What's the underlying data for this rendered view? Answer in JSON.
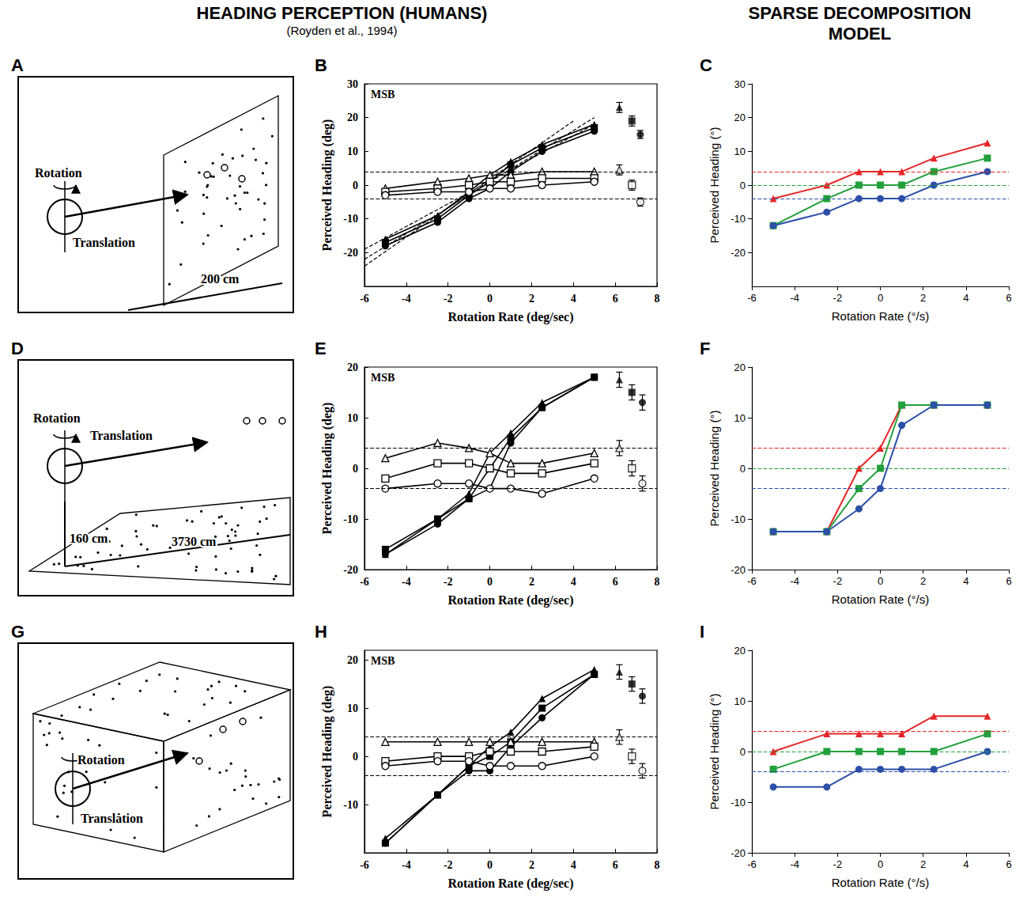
{
  "headers": {
    "humans": {
      "title": "HEADING PERCEPTION (HUMANS)",
      "subtitle": "(Royden et al., 1994)"
    },
    "model": {
      "title": "SPARSE DECOMPOSITION MODEL"
    }
  },
  "diagrams": [
    {
      "panel_label": "A",
      "labels": {
        "rotation": "Rotation",
        "translation": "Translation",
        "distance": "200 cm"
      }
    },
    {
      "panel_label": "D",
      "labels": {
        "rotation": "Rotation",
        "translation": "Translation",
        "height": "160 cm",
        "distance": "3730 cm"
      }
    },
    {
      "panel_label": "G",
      "labels": {
        "rotation": "Rotation",
        "translation": "Translation"
      }
    }
  ],
  "chart_data": [
    {
      "panel_label": "B",
      "type": "line",
      "annotation": "MSB",
      "x_label": "Rotation Rate (deg/sec)",
      "y_label": "Perceived Heading (deg)",
      "x": [
        -5,
        -2.5,
        -1,
        0,
        1,
        2.5,
        5
      ],
      "xlim": [
        -6,
        8
      ],
      "xticks": [
        -6,
        -4,
        -2,
        0,
        2,
        4,
        6,
        8
      ],
      "ylim": [
        -30,
        30
      ],
      "yticks": [
        -20,
        -10,
        0,
        10,
        20,
        30
      ],
      "grid": false,
      "series": [
        {
          "color": "#000000",
          "marker": "triangle",
          "values": [
            -16,
            -9,
            -2,
            3,
            7,
            12,
            18
          ]
        },
        {
          "color": "#000000",
          "marker": "square",
          "values": [
            -17,
            -10,
            -3,
            1,
            6,
            11,
            17
          ]
        },
        {
          "color": "#000000",
          "marker": "circle",
          "values": [
            -18,
            -11,
            -4,
            -1,
            4,
            10,
            16
          ]
        },
        {
          "color": "#000000",
          "marker": "triangle-open",
          "values": [
            -1,
            1,
            2,
            3,
            3,
            4,
            4
          ]
        },
        {
          "color": "#000000",
          "marker": "square-open",
          "values": [
            -2,
            -1,
            0,
            1,
            1,
            2,
            2
          ]
        },
        {
          "color": "#000000",
          "marker": "circle-open",
          "values": [
            -3,
            -2,
            -2,
            -1,
            -1,
            0,
            1
          ]
        },
        {
          "type": "scatter",
          "color": "#000000",
          "marker": "triangle",
          "x": [
            6.2
          ],
          "values": [
            23
          ],
          "errors": [
            1.5
          ]
        },
        {
          "type": "scatter",
          "color": "#000000",
          "marker": "square",
          "x": [
            6.8
          ],
          "values": [
            19
          ],
          "errors": [
            1.5
          ]
        },
        {
          "type": "scatter",
          "color": "#000000",
          "marker": "circle",
          "x": [
            7.2
          ],
          "values": [
            15
          ],
          "errors": [
            1.2
          ]
        },
        {
          "type": "scatter",
          "color": "#000000",
          "marker": "triangle-open",
          "x": [
            6.2
          ],
          "values": [
            4.5
          ],
          "errors": [
            1.5
          ]
        },
        {
          "type": "scatter",
          "color": "#000000",
          "marker": "square-open",
          "x": [
            6.8
          ],
          "values": [
            0
          ],
          "errors": [
            1.5
          ]
        },
        {
          "type": "scatter",
          "color": "#000000",
          "marker": "circle-open",
          "x": [
            7.2
          ],
          "values": [
            -5
          ],
          "errors": [
            1.2
          ]
        }
      ],
      "reference_lines": [
        {
          "value": 4,
          "color": "#000000",
          "line_style": "dashed"
        },
        {
          "value": -4,
          "color": "#000000",
          "line_style": "dashed"
        }
      ],
      "diagonal_lines": [
        {
          "color": "#000000",
          "line_style": "dashed",
          "x": [
            -6,
            4
          ],
          "values": [
            -24,
            19
          ]
        },
        {
          "color": "#000000",
          "line_style": "dashed",
          "x": [
            -6,
            5
          ],
          "values": [
            -22,
            20
          ]
        },
        {
          "color": "#000000",
          "line_style": "dashed",
          "x": [
            -6,
            5
          ],
          "values": [
            -19,
            18
          ]
        }
      ]
    },
    {
      "panel_label": "C",
      "type": "line",
      "x_label": "Rotation Rate (°/s)",
      "y_label": "Perceived Heading (°)",
      "x": [
        -5,
        -2.5,
        -1,
        0,
        1,
        2.5,
        5
      ],
      "xlim": [
        -6,
        6
      ],
      "xticks": [
        -6,
        -4,
        -2,
        0,
        2,
        4,
        6
      ],
      "ylim": [
        -30,
        30
      ],
      "yticks": [
        -20,
        -10,
        0,
        10,
        20,
        30
      ],
      "grid": false,
      "series": [
        {
          "color": "#e52629",
          "marker": "triangle",
          "values": [
            -4,
            0,
            4,
            4,
            4,
            8,
            12.5
          ]
        },
        {
          "color": "#22a03c",
          "marker": "square",
          "values": [
            -12,
            -4,
            0,
            0,
            0,
            4,
            8
          ]
        },
        {
          "color": "#2c4fa8",
          "marker": "circle",
          "values": [
            -12,
            -8,
            -4,
            -4,
            -4,
            0,
            4
          ]
        }
      ],
      "reference_lines": [
        {
          "value": 4,
          "color": "#e52629",
          "line_style": "dashed"
        },
        {
          "value": 0,
          "color": "#22a03c",
          "line_style": "dashed"
        },
        {
          "value": -4,
          "color": "#2c4fa8",
          "line_style": "dashed"
        }
      ]
    },
    {
      "panel_label": "E",
      "type": "line",
      "annotation": "MSB",
      "x_label": "Rotation Rate (deg/sec)",
      "y_label": "Perceived Heading (deg)",
      "x": [
        -5,
        -2.5,
        -1,
        0,
        1,
        2.5,
        5
      ],
      "xlim": [
        -6,
        8
      ],
      "xticks": [
        -6,
        -4,
        -2,
        0,
        2,
        4,
        6,
        8
      ],
      "ylim": [
        -20,
        20
      ],
      "yticks": [
        -20,
        -10,
        0,
        10,
        20
      ],
      "grid": false,
      "series": [
        {
          "color": "#000000",
          "marker": "triangle",
          "values": [
            -17,
            -10,
            -5,
            3,
            7,
            13,
            18
          ]
        },
        {
          "color": "#000000",
          "marker": "square",
          "values": [
            -16,
            -10,
            -6,
            0,
            6,
            12,
            18
          ]
        },
        {
          "color": "#000000",
          "marker": "circle",
          "values": [
            -17,
            -11,
            -6,
            -4,
            5,
            12,
            18
          ]
        },
        {
          "color": "#000000",
          "marker": "triangle-open",
          "values": [
            2,
            5,
            4,
            3,
            1,
            1,
            3
          ]
        },
        {
          "color": "#000000",
          "marker": "square-open",
          "values": [
            -2,
            1,
            1,
            0,
            -1,
            -1,
            1
          ]
        },
        {
          "color": "#000000",
          "marker": "circle-open",
          "values": [
            -4,
            -3,
            -3,
            -4,
            -4,
            -5,
            -2
          ]
        },
        {
          "type": "scatter",
          "color": "#000000",
          "marker": "triangle",
          "x": [
            6.2
          ],
          "values": [
            17.5
          ],
          "errors": [
            1.5
          ]
        },
        {
          "type": "scatter",
          "color": "#000000",
          "marker": "square",
          "x": [
            6.8
          ],
          "values": [
            15
          ],
          "errors": [
            1.5
          ]
        },
        {
          "type": "scatter",
          "color": "#000000",
          "marker": "circle",
          "x": [
            7.3
          ],
          "values": [
            13
          ],
          "errors": [
            1.5
          ]
        },
        {
          "type": "scatter",
          "color": "#000000",
          "marker": "triangle-open",
          "x": [
            6.2
          ],
          "values": [
            4
          ],
          "errors": [
            1.5
          ]
        },
        {
          "type": "scatter",
          "color": "#000000",
          "marker": "square-open",
          "x": [
            6.8
          ],
          "values": [
            0
          ],
          "errors": [
            1.5
          ]
        },
        {
          "type": "scatter",
          "color": "#000000",
          "marker": "circle-open",
          "x": [
            7.3
          ],
          "values": [
            -3
          ],
          "errors": [
            1.5
          ]
        }
      ],
      "reference_lines": [
        {
          "value": 4,
          "color": "#000000",
          "line_style": "dashed"
        },
        {
          "value": -4,
          "color": "#000000",
          "line_style": "dashed"
        }
      ]
    },
    {
      "panel_label": "F",
      "type": "line",
      "x_label": "Rotation Rate (°/s)",
      "y_label": "Perceived Heading (°)",
      "x": [
        -5,
        -2.5,
        -1,
        0,
        1,
        2.5,
        5
      ],
      "xlim": [
        -6,
        6
      ],
      "xticks": [
        -6,
        -4,
        -2,
        0,
        2,
        4,
        6
      ],
      "ylim": [
        -20,
        20
      ],
      "yticks": [
        -20,
        -10,
        0,
        10,
        20
      ],
      "grid": false,
      "series": [
        {
          "color": "#e52629",
          "marker": "triangle",
          "values": [
            -12.5,
            -12.5,
            0,
            4,
            12.5,
            12.5,
            12.5
          ]
        },
        {
          "color": "#22a03c",
          "marker": "square",
          "values": [
            -12.5,
            -12.5,
            -4,
            0,
            12.5,
            12.5,
            12.5
          ]
        },
        {
          "color": "#2c4fa8",
          "marker": "circle",
          "values": [
            -12.5,
            -12.5,
            -8,
            -4,
            8.5,
            12.5,
            12.5
          ]
        }
      ],
      "reference_lines": [
        {
          "value": 4,
          "color": "#e52629",
          "line_style": "dashed"
        },
        {
          "value": 0,
          "color": "#22a03c",
          "line_style": "dashed"
        },
        {
          "value": -4,
          "color": "#2c4fa8",
          "line_style": "dashed"
        }
      ]
    },
    {
      "panel_label": "H",
      "type": "line",
      "annotation": "MSB",
      "x_label": "Rotation Rate (deg/sec)",
      "y_label": "Perceived Heading (deg)",
      "x": [
        -5,
        -2.5,
        -1,
        0,
        1,
        2.5,
        5
      ],
      "xlim": [
        -6,
        8
      ],
      "xticks": [
        -6,
        -4,
        -2,
        0,
        2,
        4,
        6,
        8
      ],
      "ylim": [
        -20,
        22
      ],
      "yticks": [
        -10,
        0,
        10,
        20
      ],
      "grid": false,
      "series": [
        {
          "color": "#000000",
          "marker": "triangle",
          "values": [
            -17,
            -8,
            -2,
            2,
            5,
            12,
            18
          ]
        },
        {
          "color": "#000000",
          "marker": "square",
          "values": [
            -18,
            -8,
            -2,
            0,
            3,
            10,
            17
          ]
        },
        {
          "color": "#000000",
          "marker": "circle",
          "values": [
            -18,
            -8,
            -3,
            -3,
            2,
            8,
            17
          ]
        },
        {
          "color": "#000000",
          "marker": "triangle-open",
          "values": [
            3,
            3,
            3,
            3,
            3,
            3,
            3
          ]
        },
        {
          "color": "#000000",
          "marker": "square-open",
          "values": [
            -1,
            0,
            0,
            1,
            1,
            1,
            2
          ]
        },
        {
          "color": "#000000",
          "marker": "circle-open",
          "values": [
            -2,
            -1,
            -1,
            -2,
            -2,
            -2,
            0
          ]
        },
        {
          "type": "scatter",
          "color": "#000000",
          "marker": "triangle",
          "x": [
            6.2
          ],
          "values": [
            17.5
          ],
          "errors": [
            1.5
          ]
        },
        {
          "type": "scatter",
          "color": "#000000",
          "marker": "square",
          "x": [
            6.8
          ],
          "values": [
            15
          ],
          "errors": [
            1.5
          ]
        },
        {
          "type": "scatter",
          "color": "#000000",
          "marker": "circle",
          "x": [
            7.3
          ],
          "values": [
            12.5
          ],
          "errors": [
            1.5
          ]
        },
        {
          "type": "scatter",
          "color": "#000000",
          "marker": "triangle-open",
          "x": [
            6.2
          ],
          "values": [
            4
          ],
          "errors": [
            1.5
          ]
        },
        {
          "type": "scatter",
          "color": "#000000",
          "marker": "square-open",
          "x": [
            6.8
          ],
          "values": [
            0
          ],
          "errors": [
            1.5
          ]
        },
        {
          "type": "scatter",
          "color": "#000000",
          "marker": "circle-open",
          "x": [
            7.3
          ],
          "values": [
            -3
          ],
          "errors": [
            1.5
          ]
        }
      ],
      "reference_lines": [
        {
          "value": 4,
          "color": "#000000",
          "line_style": "dashed"
        },
        {
          "value": -4,
          "color": "#000000",
          "line_style": "dashed"
        }
      ]
    },
    {
      "panel_label": "I",
      "type": "line",
      "x_label": "Rotation Rate (°/s)",
      "y_label": "Perceived Heading (°)",
      "x": [
        -5,
        -2.5,
        -1,
        0,
        1,
        2.5,
        5
      ],
      "xlim": [
        -6,
        6
      ],
      "xticks": [
        -6,
        -4,
        -2,
        0,
        2,
        4,
        6
      ],
      "ylim": [
        -20,
        20
      ],
      "yticks": [
        -20,
        -10,
        0,
        10,
        20
      ],
      "grid": false,
      "series": [
        {
          "color": "#e52629",
          "marker": "triangle",
          "values": [
            0,
            3.5,
            3.5,
            3.5,
            3.5,
            7,
            7
          ]
        },
        {
          "color": "#22a03c",
          "marker": "square",
          "values": [
            -3.5,
            0,
            0,
            0,
            0,
            0,
            3.5
          ]
        },
        {
          "color": "#2c4fa8",
          "marker": "circle",
          "values": [
            -7,
            -7,
            -3.5,
            -3.5,
            -3.5,
            -3.5,
            0
          ]
        }
      ],
      "reference_lines": [
        {
          "value": 4,
          "color": "#e52629",
          "line_style": "dashed"
        },
        {
          "value": 0,
          "color": "#22a03c",
          "line_style": "dashed"
        },
        {
          "value": -4,
          "color": "#2c4fa8",
          "line_style": "dashed"
        }
      ]
    }
  ]
}
